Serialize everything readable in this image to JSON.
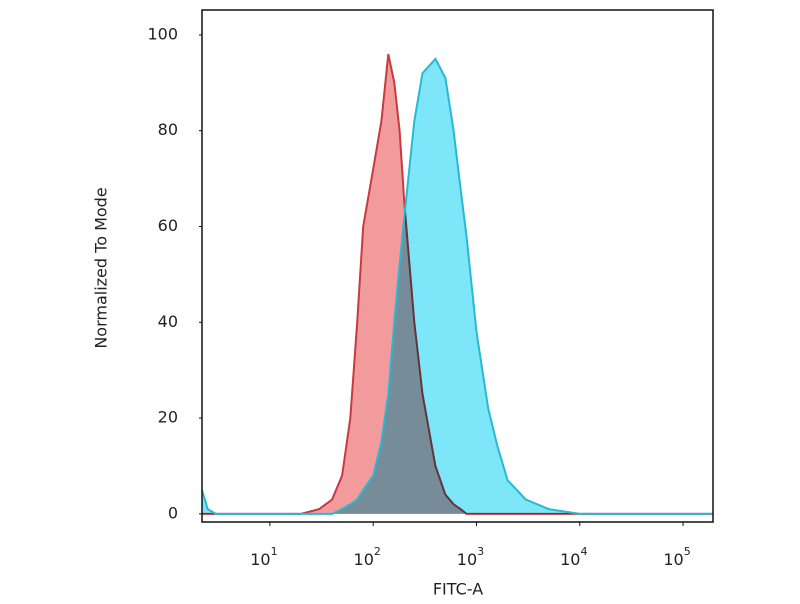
{
  "chart_data": {
    "type": "area",
    "xlabel": "FITC-A",
    "ylabel": "Normalized To Mode",
    "xscale": "log",
    "x": [
      2.2,
      2.5,
      3,
      10,
      20,
      30,
      40,
      50,
      60,
      70,
      80,
      100,
      120,
      140,
      160,
      180,
      200,
      250,
      300,
      400,
      500,
      600,
      700,
      800,
      1000,
      1300,
      1600,
      2000,
      3000,
      5000,
      10000,
      195000
    ],
    "series": [
      {
        "color": "#f08a8c",
        "line_color": "#c83a3e",
        "values": [
          0,
          0,
          0,
          0,
          0,
          1,
          3,
          8,
          20,
          40,
          60,
          72,
          82,
          96,
          90,
          80,
          65,
          40,
          25,
          10,
          4,
          2,
          1,
          0,
          0,
          0,
          0,
          0,
          0,
          0,
          0,
          0
        ]
      },
      {
        "color": "#6fe3f7",
        "line_color": "#28b9d2",
        "values": [
          5,
          1,
          0,
          0,
          0,
          0,
          0,
          1,
          2,
          3,
          5,
          8,
          15,
          25,
          40,
          52,
          62,
          82,
          92,
          95,
          91,
          80,
          68,
          58,
          38,
          22,
          14,
          7,
          3,
          1,
          0,
          0
        ]
      }
    ],
    "xlim": [
      2.2,
      195000
    ],
    "xticks": [
      {
        "value": 10,
        "label": "10",
        "exponent": "1"
      },
      {
        "value": 100,
        "label": "10",
        "exponent": "2"
      },
      {
        "value": 1000,
        "label": "10",
        "exponent": "3"
      },
      {
        "value": 10000,
        "label": "10",
        "exponent": "4"
      },
      {
        "value": 100000,
        "label": "10",
        "exponent": "5"
      }
    ],
    "ylim": [
      -1.7,
      105.2
    ],
    "yticks": [
      0,
      20,
      40,
      60,
      80,
      100
    ]
  }
}
